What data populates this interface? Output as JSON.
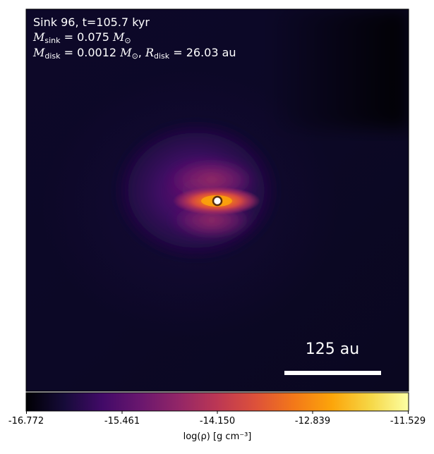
{
  "annotation": {
    "line1": "Sink 96, t=105.7 kyr",
    "sink_mass_symbol": "M",
    "sink_mass_sub": "sink",
    "sink_mass_value": " = 0.075 ",
    "sink_mass_unit": "M",
    "sink_mass_unit_sub": "⊙",
    "disk_mass_symbol": "M",
    "disk_mass_sub": "disk",
    "disk_mass_value": " = 0.0012 ",
    "disk_mass_unit": "M",
    "disk_mass_unit_sub": "⊙",
    "separator": ", ",
    "disk_radius_symbol": "R",
    "disk_radius_sub": "disk",
    "disk_radius_value": " = 26.03 au"
  },
  "scale_bar": {
    "label": "125 au"
  },
  "colorbar": {
    "label": "log(ρ) [g cm⁻³]",
    "ticks": [
      "-16.772",
      "-15.461",
      "-14.150",
      "-12.839",
      "-11.529"
    ],
    "colormap": "inferno"
  },
  "colors": {
    "background": "#000004",
    "disk_core": "#f57d15",
    "sink_marker": "#ffffff"
  }
}
